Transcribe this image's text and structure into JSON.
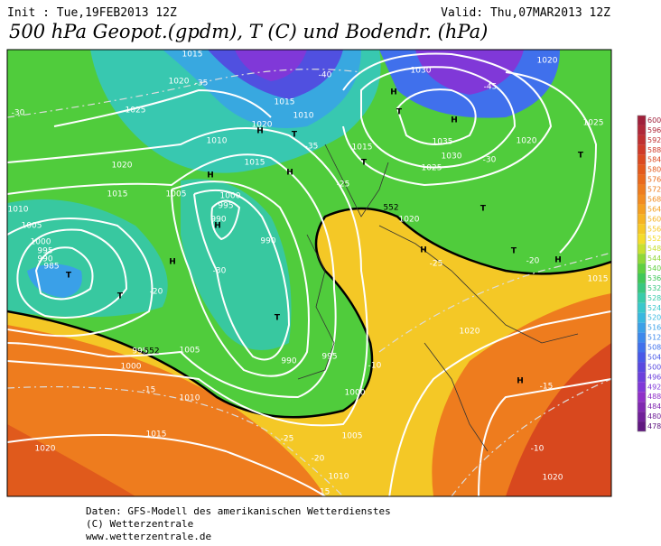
{
  "header": {
    "init": "Init : Tue,19FEB2013 12Z",
    "valid": "Valid: Thu,07MAR2013 12Z",
    "title": "500 hPa Geopot.(gpdm), T (C) und Bodendr. (hPa)"
  },
  "map": {
    "labels": [
      "1015",
      "1020",
      "1025",
      "-30",
      "1020",
      "1015",
      "1010",
      "1005",
      "1000",
      "995",
      "990",
      "985",
      "1005",
      "1000",
      "995",
      "990",
      "990",
      "1010",
      "1015",
      "1020",
      "1015",
      "1010",
      "1030",
      "1035",
      "1030",
      "1025",
      "1020",
      "1025",
      "1020",
      "1020",
      "995",
      "990",
      "1000",
      "1005",
      "1010",
      "1010",
      "1015",
      "1020",
      "995",
      "1000",
      "1005",
      "1020",
      "1015",
      "1020",
      "1015",
      "H",
      "T",
      "H",
      "H",
      "T",
      "H",
      "T",
      "H",
      "T",
      "H",
      "T",
      "H",
      "T",
      "H",
      "H",
      "T",
      "T",
      "T",
      "H",
      "-40",
      "-45",
      "-35",
      "-30",
      "-25",
      "-25",
      "-20",
      "-20",
      "-15",
      "-15",
      "-10",
      "-10",
      "-25",
      "-20",
      "-15",
      "-35",
      "-30",
      "552",
      "552"
    ]
  },
  "colorbar": {
    "levels": [
      600,
      596,
      592,
      588,
      584,
      580,
      576,
      572,
      568,
      564,
      560,
      556,
      552,
      548,
      544,
      540,
      536,
      532,
      528,
      524,
      520,
      516,
      512,
      508,
      504,
      500,
      496,
      492,
      488,
      484,
      480,
      478
    ],
    "colors": [
      "#a0203a",
      "#b02838",
      "#c03030",
      "#d03a28",
      "#dc4a20",
      "#e45a1c",
      "#ea6a1c",
      "#ee7c1e",
      "#f28c20",
      "#f4a020",
      "#f6b422",
      "#f6c826",
      "#f4dc2a",
      "#c8e030",
      "#90d838",
      "#60d040",
      "#40c858",
      "#38c880",
      "#38ccaa",
      "#38c8cc",
      "#38b8e0",
      "#3aa0e8",
      "#3c88ec",
      "#4070ec",
      "#4858e8",
      "#5848e0",
      "#6c40dc",
      "#8038d8",
      "#9030c8",
      "#8028b0",
      "#702098",
      "#601880"
    ]
  },
  "footer": {
    "lines": [
      "Daten: GFS-Modell des amerikanischen Wetterdienstes",
      "(C) Wetterzentrale",
      "www.wetterzentrale.de"
    ]
  }
}
